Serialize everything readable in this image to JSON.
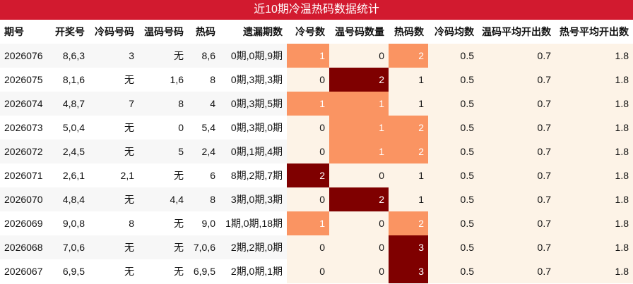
{
  "title": "近10期冷温热码数据统计",
  "columns": [
    "期号",
    "开奖号",
    "冷码号码",
    "温码号码",
    "热码",
    "遗漏期数",
    "冷号数",
    "温号码数量",
    "热码数",
    "冷码均数",
    "温码平均开出数",
    "热号平均开出数"
  ],
  "colors": {
    "header": "#d21a2f",
    "light": "#fa9462",
    "dark": "#7f0000",
    "beige": "#fdf3e7"
  },
  "rows": [
    {
      "cells": [
        "2026076",
        "8,6,3",
        "3",
        "无",
        "8,6",
        "0期,0期,9期",
        "1",
        "0",
        "2",
        "0.5",
        "0.7",
        "1.8"
      ],
      "heat": [
        "light",
        "none",
        "light"
      ]
    },
    {
      "cells": [
        "2026075",
        "8,1,6",
        "无",
        "1,6",
        "8",
        "0期,3期,3期",
        "0",
        "2",
        "1",
        "0.5",
        "0.7",
        "1.8"
      ],
      "heat": [
        "none",
        "dark",
        "none"
      ]
    },
    {
      "cells": [
        "2026074",
        "4,8,7",
        "7",
        "8",
        "4",
        "0期,3期,5期",
        "1",
        "1",
        "1",
        "0.5",
        "0.7",
        "1.8"
      ],
      "heat": [
        "light",
        "light",
        "none"
      ]
    },
    {
      "cells": [
        "2026073",
        "5,0,4",
        "无",
        "0",
        "5,4",
        "0期,3期,0期",
        "0",
        "1",
        "2",
        "0.5",
        "0.7",
        "1.8"
      ],
      "heat": [
        "none",
        "light",
        "light"
      ]
    },
    {
      "cells": [
        "2026072",
        "2,4,5",
        "无",
        "5",
        "2,4",
        "0期,1期,4期",
        "0",
        "1",
        "2",
        "0.5",
        "0.7",
        "1.8"
      ],
      "heat": [
        "none",
        "light",
        "light"
      ]
    },
    {
      "cells": [
        "2026071",
        "2,6,1",
        "2,1",
        "无",
        "6",
        "8期,2期,7期",
        "2",
        "0",
        "1",
        "0.5",
        "0.7",
        "1.8"
      ],
      "heat": [
        "dark",
        "none",
        "none"
      ]
    },
    {
      "cells": [
        "2026070",
        "4,8,4",
        "无",
        "4,4",
        "8",
        "3期,0期,3期",
        "0",
        "2",
        "1",
        "0.5",
        "0.7",
        "1.8"
      ],
      "heat": [
        "none",
        "dark",
        "none"
      ]
    },
    {
      "cells": [
        "2026069",
        "9,0,8",
        "8",
        "无",
        "9,0",
        "1期,0期,18期",
        "1",
        "0",
        "2",
        "0.5",
        "0.7",
        "1.8"
      ],
      "heat": [
        "light",
        "none",
        "light"
      ]
    },
    {
      "cells": [
        "2026068",
        "7,0,6",
        "无",
        "无",
        "7,0,6",
        "2期,2期,0期",
        "0",
        "0",
        "3",
        "0.5",
        "0.7",
        "1.8"
      ],
      "heat": [
        "none",
        "none",
        "dark"
      ]
    },
    {
      "cells": [
        "2026067",
        "6,9,5",
        "无",
        "无",
        "6,9,5",
        "2期,0期,1期",
        "0",
        "0",
        "3",
        "0.5",
        "0.7",
        "1.8"
      ],
      "heat": [
        "none",
        "none",
        "dark"
      ]
    }
  ]
}
